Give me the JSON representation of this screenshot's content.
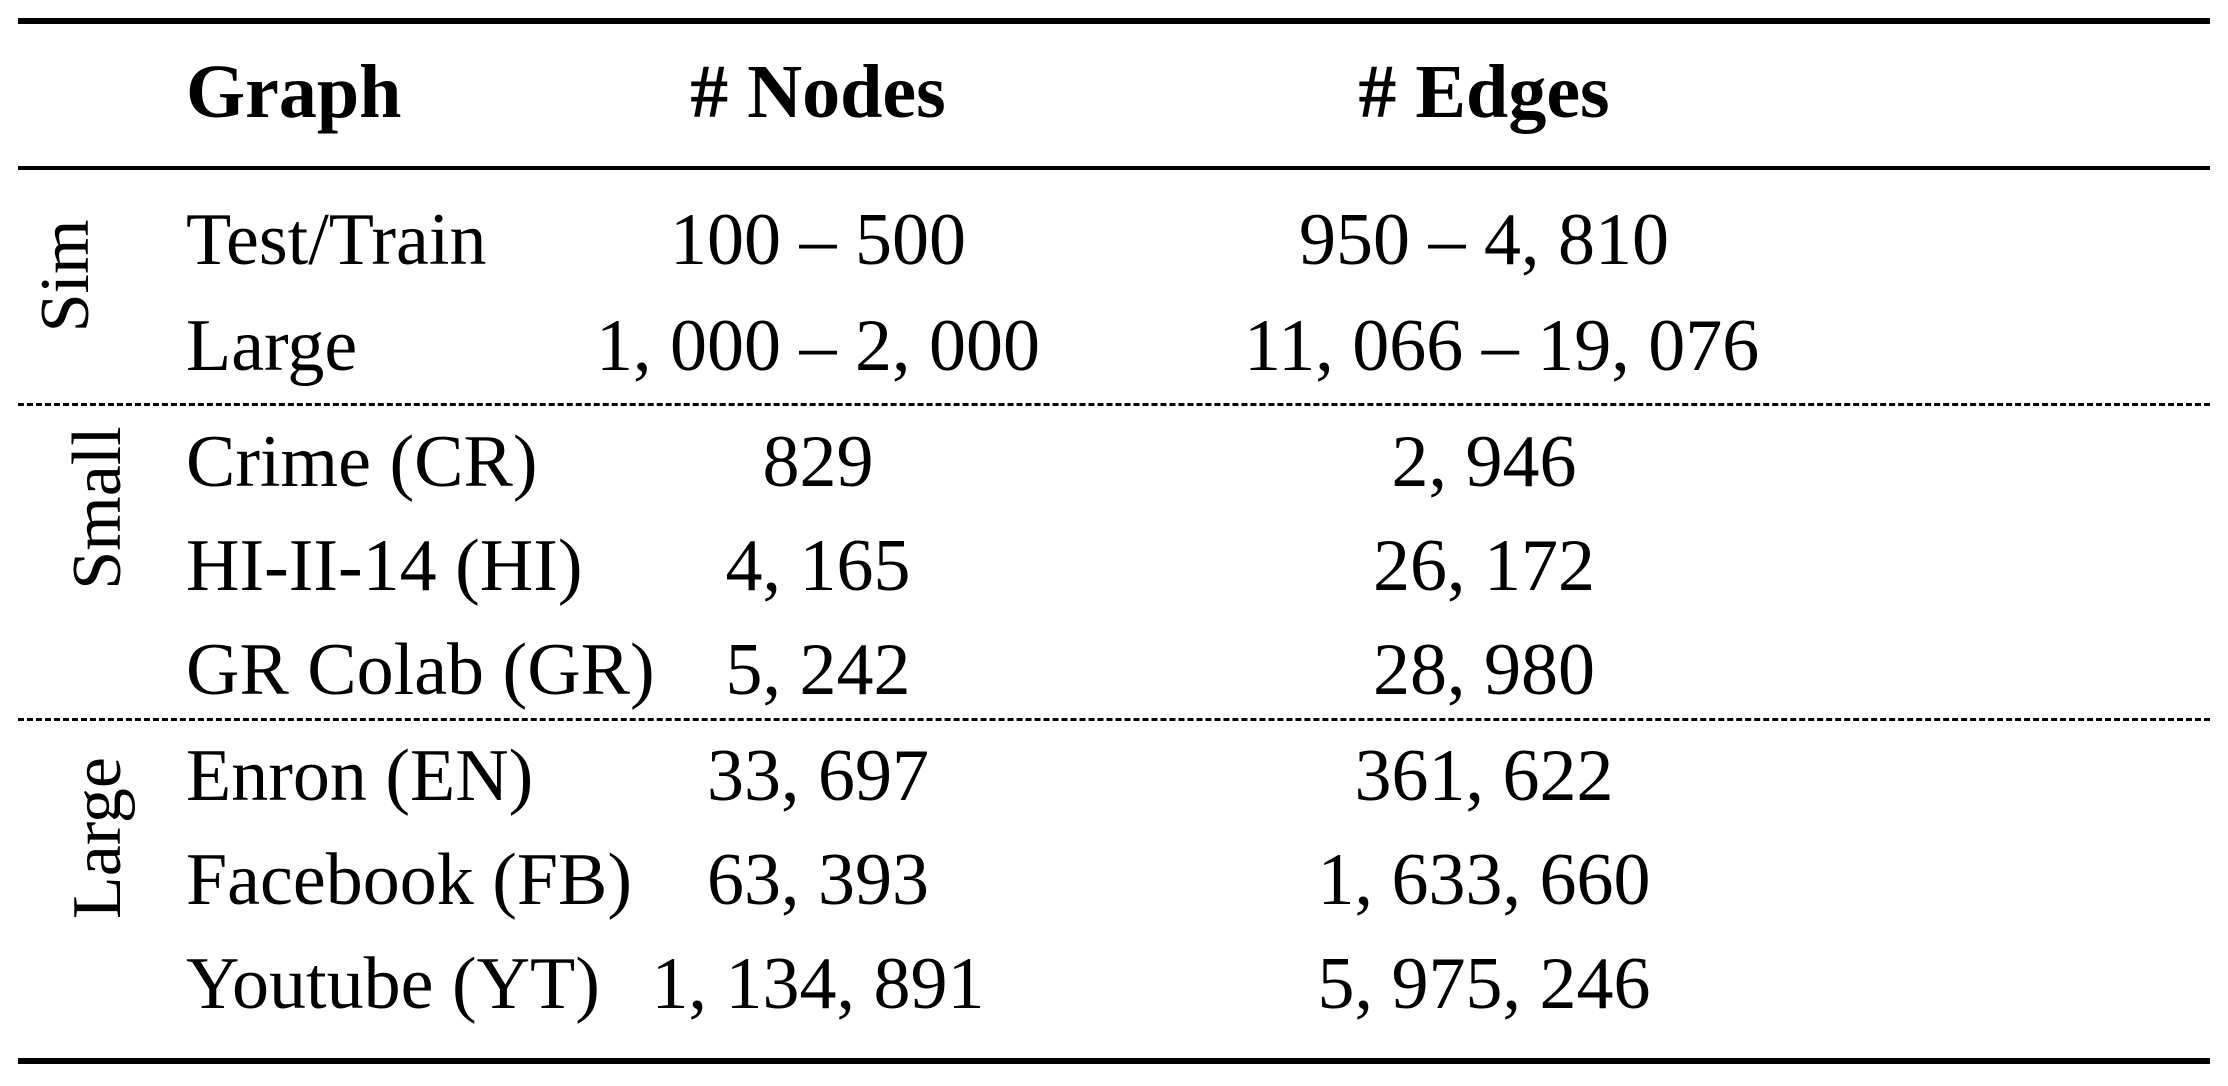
{
  "table": {
    "headers": {
      "graph": "Graph",
      "nodes": "# Nodes",
      "edges": "# Edges"
    },
    "groups": {
      "sim": "Sim",
      "small": "Small",
      "large": "Large"
    },
    "rows": [
      {
        "graph": "Test/Train",
        "nodes": "100 – 500",
        "edges": "950 – 4, 810"
      },
      {
        "graph": "Large",
        "nodes": "1, 000 – 2, 000",
        "edges": "11, 066 – 19, 076"
      },
      {
        "graph": "Crime (CR)",
        "nodes": "829",
        "edges": "2, 946"
      },
      {
        "graph": "HI-II-14 (HI)",
        "nodes": "4, 165",
        "edges": "26, 172"
      },
      {
        "graph": "GR Colab (GR)",
        "nodes": "5, 242",
        "edges": "28, 980"
      },
      {
        "graph": "Enron (EN)",
        "nodes": "33, 697",
        "edges": "361, 622"
      },
      {
        "graph": "Facebook (FB)",
        "nodes": "63, 393",
        "edges": "1, 633, 660"
      },
      {
        "graph": "Youtube (YT)",
        "nodes": "1, 134, 891",
        "edges": "5, 975, 246"
      }
    ]
  }
}
